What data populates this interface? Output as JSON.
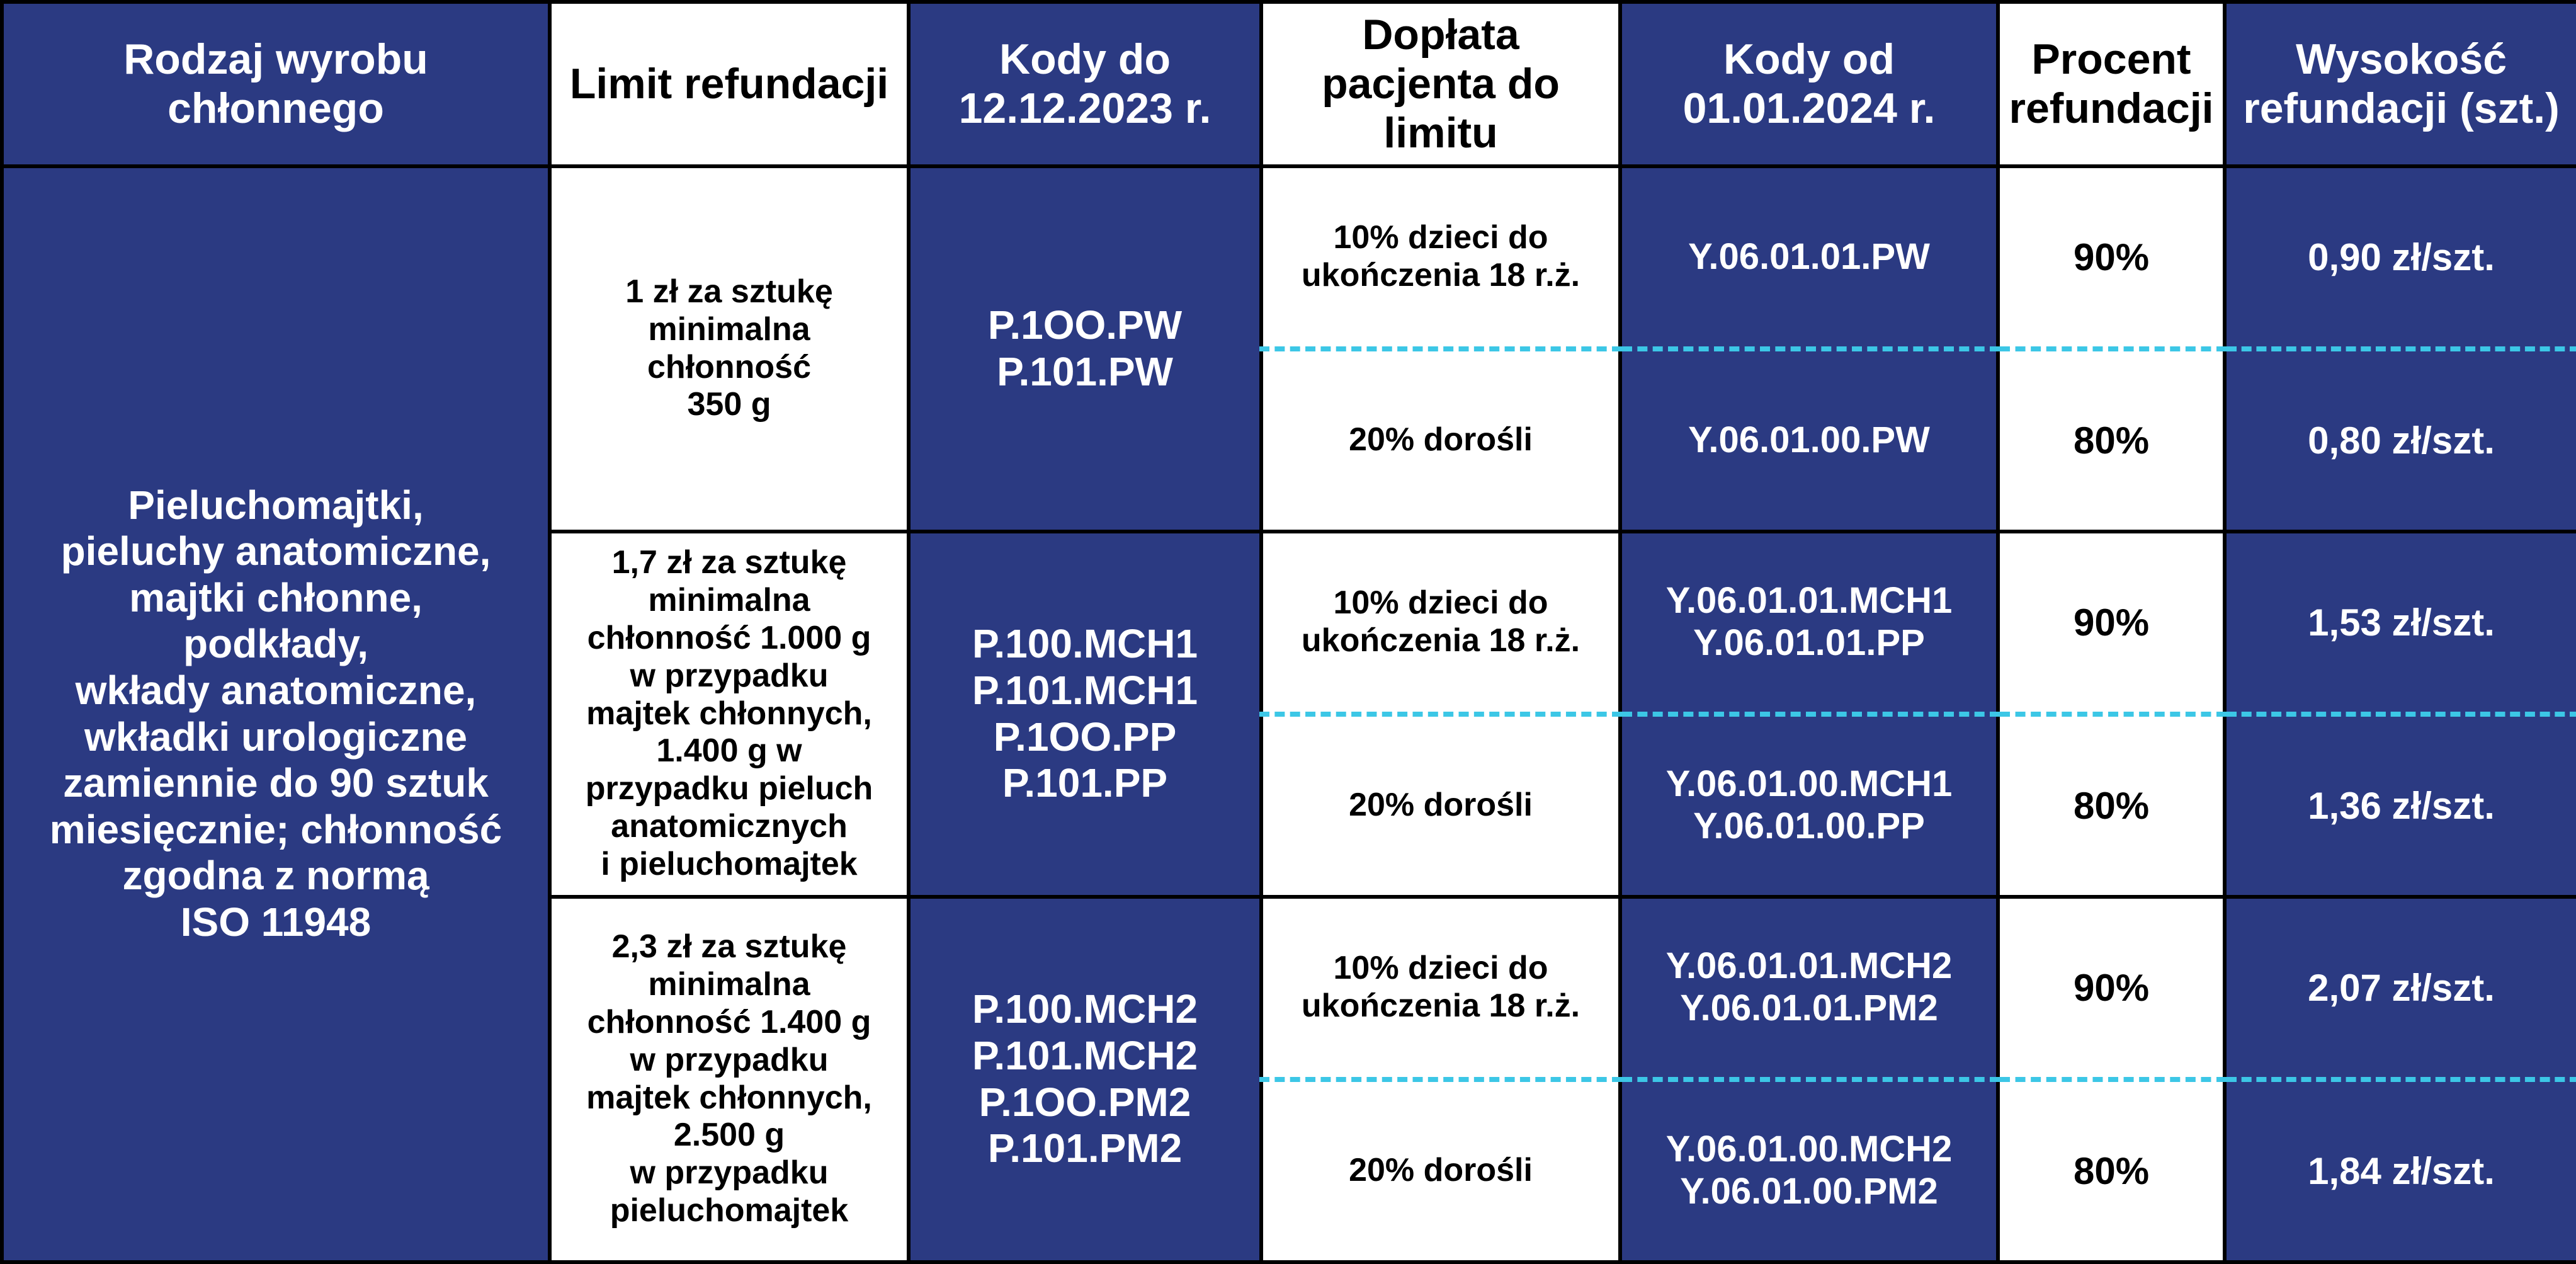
{
  "colors": {
    "blue": "#2b3a82",
    "white": "#ffffff",
    "black": "#000000",
    "dashed": "#3cc7e6"
  },
  "headers": {
    "c1": "Rodzaj wyrobu chłonnego",
    "c2": "Limit refundacji",
    "c3": "Kody do 12.12.2023 r.",
    "c4": "Dopłata pacjenta do limitu",
    "c5": "Kody od 01.01.2024 r.",
    "c6": "Procent refundacji",
    "c7": "Wysokość refundacji (szt.)"
  },
  "rowLabel": "Pieluchomajtki,\npieluchy anatomiczne,\nmajtki chłonne,\npodkłady,\nwkłady anatomiczne,\nwkładki urologiczne\nzamiennie do 90 sztuk\nmiesięcznie; chłonność\nzgodna z normą\nISO 11948",
  "tiers": [
    {
      "limit": "1 zł za sztukę\nminimalna\nchłonność\n350 g",
      "oldCodes": "P.1OO.PW\nP.101.PW",
      "top": {
        "doplata": "10% dzieci do\nukończenia 18 r.ż.",
        "newCodes": "Y.06.01.01.PW",
        "procent": "90%",
        "wysokosc": "0,90 zł/szt."
      },
      "bottom": {
        "doplata": "20% dorośli",
        "newCodes": "Y.06.01.00.PW",
        "procent": "80%",
        "wysokosc": "0,80 zł/szt."
      }
    },
    {
      "limit": "1,7 zł za sztukę\nminimalna\nchłonność 1.000 g\nw przypadku\nmajtek chłonnych,\n1.400 g w\nprzypadku pieluch\nanatomicznych\ni pieluchomajtek",
      "oldCodes": "P.100.MCH1\nP.101.MCH1\nP.1OO.PP\nP.101.PP",
      "top": {
        "doplata": "10% dzieci do\nukończenia 18 r.ż.",
        "newCodes": "Y.06.01.01.MCH1\nY.06.01.01.PP",
        "procent": "90%",
        "wysokosc": "1,53 zł/szt."
      },
      "bottom": {
        "doplata": "20% dorośli",
        "newCodes": "Y.06.01.00.MCH1\nY.06.01.00.PP",
        "procent": "80%",
        "wysokosc": "1,36 zł/szt."
      }
    },
    {
      "limit": "2,3 zł za sztukę\nminimalna\nchłonność 1.400 g\nw przypadku\nmajtek chłonnych,\n2.500 g\nw przypadku\npieluchomajtek",
      "oldCodes": "P.100.MCH2\nP.101.MCH2\nP.1OO.PM2\nP.101.PM2",
      "top": {
        "doplata": "10% dzieci do\nukończenia 18 r.ż.",
        "newCodes": "Y.06.01.01.MCH2\nY.06.01.01.PM2",
        "procent": "90%",
        "wysokosc": "2,07 zł/szt."
      },
      "bottom": {
        "doplata": "20% dorośli",
        "newCodes": "Y.06.01.00.MCH2\nY.06.01.00.PM2",
        "procent": "80%",
        "wysokosc": "1,84 zł/szt."
      }
    }
  ]
}
